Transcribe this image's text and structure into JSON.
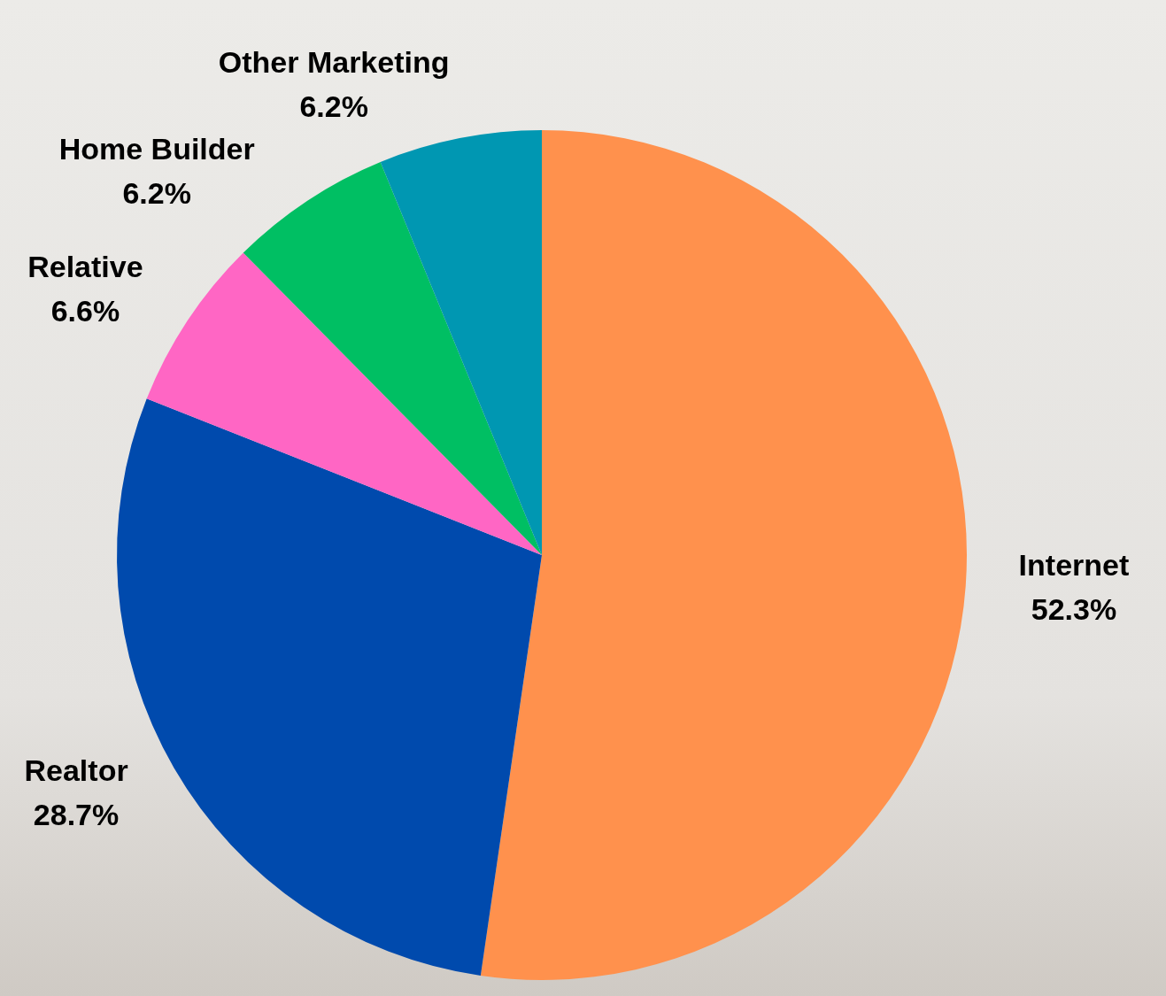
{
  "chart_data": {
    "type": "pie",
    "categories": [
      "Internet",
      "Realtor",
      "Relative",
      "Home Builder",
      "Other Marketing"
    ],
    "values": [
      52.3,
      28.7,
      6.6,
      6.2,
      6.2
    ],
    "value_labels": [
      "52.3%",
      "28.7%",
      "6.6%",
      "6.2%",
      "6.2%"
    ],
    "colors": [
      "#ff914d",
      "#004aad",
      "#ff66c4",
      "#00bf63",
      "#0097b2"
    ],
    "data_labels": true
  }
}
